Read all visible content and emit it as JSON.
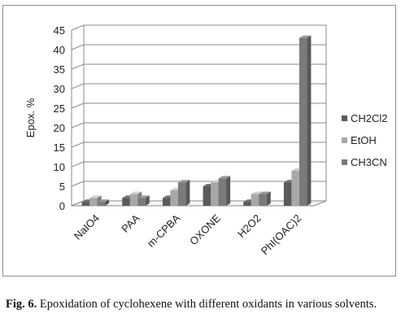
{
  "chart_data": {
    "type": "bar",
    "style": "3d-clustered-column",
    "categories": [
      "NaIO4",
      "PAA",
      "m-CPBA",
      "OXONE",
      "H2O2",
      "PhI(OAC)2"
    ],
    "series": [
      {
        "name": "CH2Cl2",
        "color": "#5a5a5a",
        "values": [
          1,
          2,
          2,
          5,
          1,
          6
        ]
      },
      {
        "name": "EtOH",
        "color": "#a8a8a8",
        "values": [
          2,
          3,
          4,
          6,
          3,
          9
        ]
      },
      {
        "name": "CH3CN",
        "color": "#7a7a7a",
        "values": [
          1,
          2,
          6,
          7,
          3,
          43
        ]
      }
    ],
    "ylabel": "Epox. %",
    "xlabel": "",
    "ylim": [
      0,
      45
    ],
    "yticks": [
      0,
      5,
      10,
      15,
      20,
      25,
      30,
      35,
      40,
      45
    ],
    "grid": true,
    "legend": "right"
  },
  "caption": {
    "label": "Fig. 6.",
    "text": " Epoxidation of cyclohexene with different oxidants in various solvents."
  }
}
